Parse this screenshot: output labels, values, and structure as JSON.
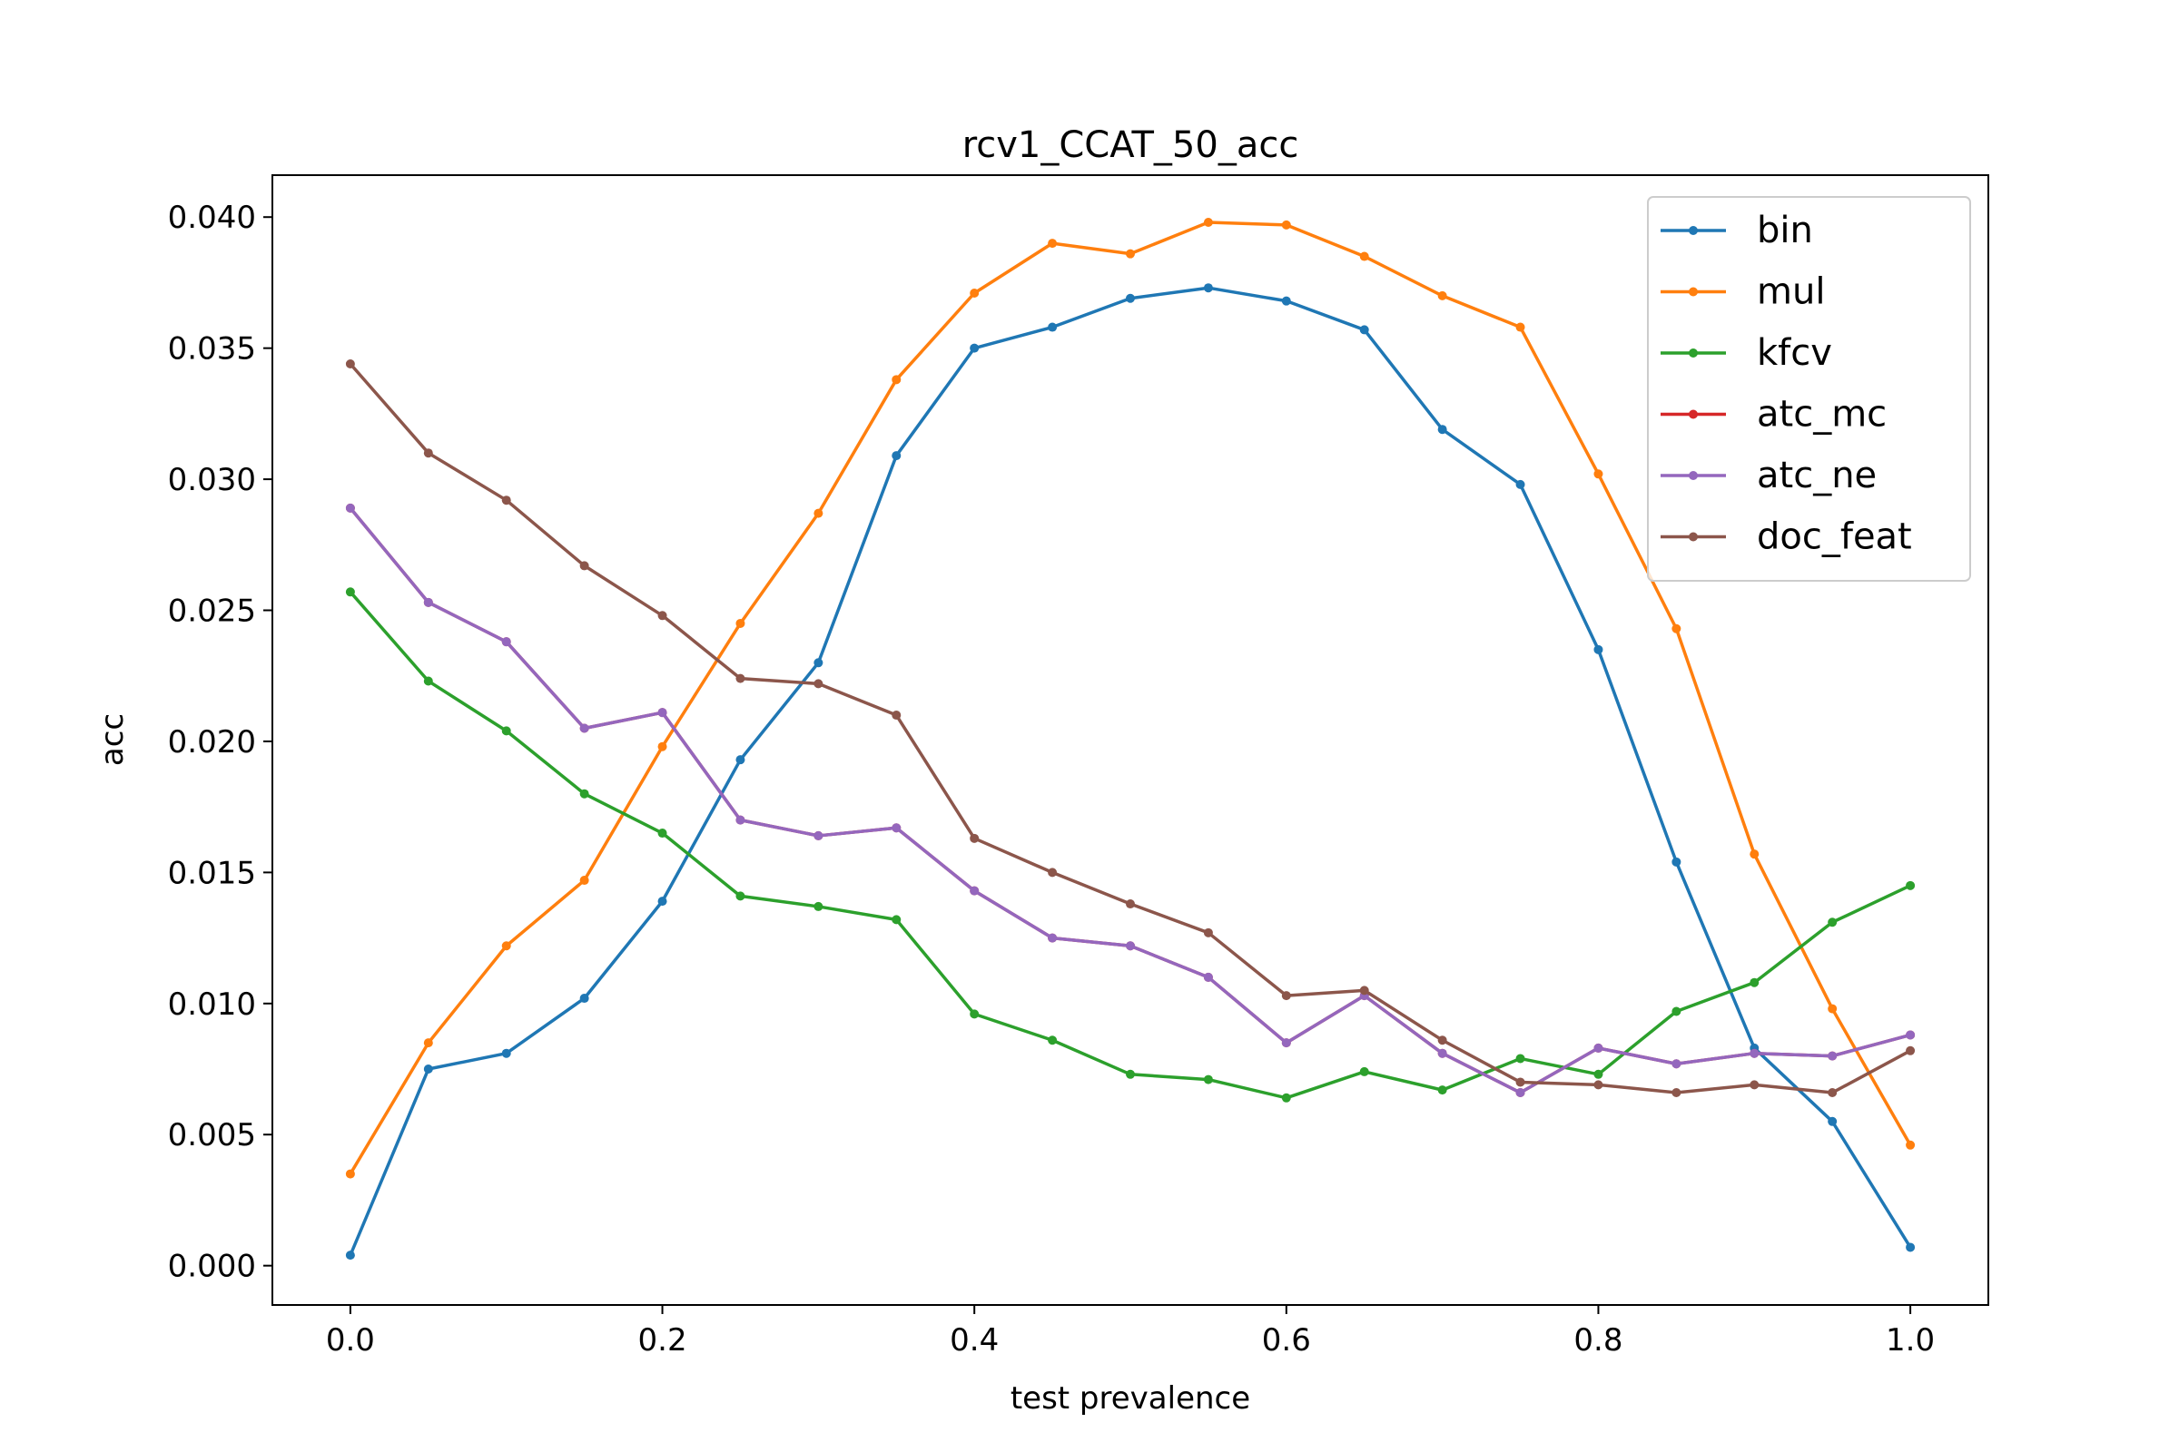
{
  "chart_data": {
    "type": "line",
    "title": "rcv1_CCAT_50_acc",
    "xlabel": "test prevalence",
    "ylabel": "acc",
    "xlim": [
      -0.05,
      1.05
    ],
    "ylim": [
      -0.0015,
      0.0416
    ],
    "grid": false,
    "legend_position": "top-right",
    "x_ticks": [
      "0.0",
      "0.2",
      "0.4",
      "0.6",
      "0.8",
      "1.0"
    ],
    "y_ticks": [
      "0.000",
      "0.005",
      "0.010",
      "0.015",
      "0.020",
      "0.025",
      "0.030",
      "0.035",
      "0.040"
    ],
    "x": [
      0.0,
      0.05,
      0.1,
      0.15,
      0.2,
      0.25,
      0.3,
      0.35,
      0.4,
      0.45,
      0.5,
      0.55,
      0.6,
      0.65,
      0.7,
      0.75,
      0.8,
      0.85,
      0.9,
      0.95,
      1.0
    ],
    "series": [
      {
        "name": "bin",
        "color": "#1f77b4",
        "values": [
          0.0004,
          0.0075,
          0.0081,
          0.0102,
          0.0139,
          0.0193,
          0.023,
          0.0309,
          0.035,
          0.0358,
          0.0369,
          0.0373,
          0.0368,
          0.0357,
          0.0319,
          0.0298,
          0.0235,
          0.0154,
          0.0083,
          0.0055,
          0.0007
        ]
      },
      {
        "name": "mul",
        "color": "#ff7f0e",
        "values": [
          0.0035,
          0.0085,
          0.0122,
          0.0147,
          0.0198,
          0.0245,
          0.0287,
          0.0338,
          0.0371,
          0.039,
          0.0386,
          0.0398,
          0.0397,
          0.0385,
          0.037,
          0.0358,
          0.0302,
          0.0243,
          0.0157,
          0.0098,
          0.0046
        ]
      },
      {
        "name": "kfcv",
        "color": "#2ca02c",
        "values": [
          0.0257,
          0.0223,
          0.0204,
          0.018,
          0.0165,
          0.0141,
          0.0137,
          0.0132,
          0.0096,
          0.0086,
          0.0073,
          0.0071,
          0.0064,
          0.0074,
          0.0067,
          0.0079,
          0.0073,
          0.0097,
          0.0108,
          0.0131,
          0.0145
        ]
      },
      {
        "name": "atc_mc",
        "color": "#d62728",
        "values": [
          0.0289,
          0.0253,
          0.0238,
          0.0205,
          0.0211,
          0.017,
          0.0164,
          0.0167,
          0.0143,
          0.0125,
          0.0122,
          0.011,
          0.0085,
          0.0103,
          0.0081,
          0.0066,
          0.0083,
          0.0077,
          0.0081,
          0.008,
          0.0088
        ]
      },
      {
        "name": "atc_ne",
        "color": "#9467bd",
        "values": [
          0.0289,
          0.0253,
          0.0238,
          0.0205,
          0.0211,
          0.017,
          0.0164,
          0.0167,
          0.0143,
          0.0125,
          0.0122,
          0.011,
          0.0085,
          0.0103,
          0.0081,
          0.0066,
          0.0083,
          0.0077,
          0.0081,
          0.008,
          0.0088
        ]
      },
      {
        "name": "doc_feat",
        "color": "#8c564b",
        "values": [
          0.0344,
          0.031,
          0.0292,
          0.0267,
          0.0248,
          0.0224,
          0.0222,
          0.021,
          0.0163,
          0.015,
          0.0138,
          0.0127,
          0.0103,
          0.0105,
          0.0086,
          0.007,
          0.0069,
          0.0066,
          0.0069,
          0.0066,
          0.0082
        ]
      }
    ]
  }
}
